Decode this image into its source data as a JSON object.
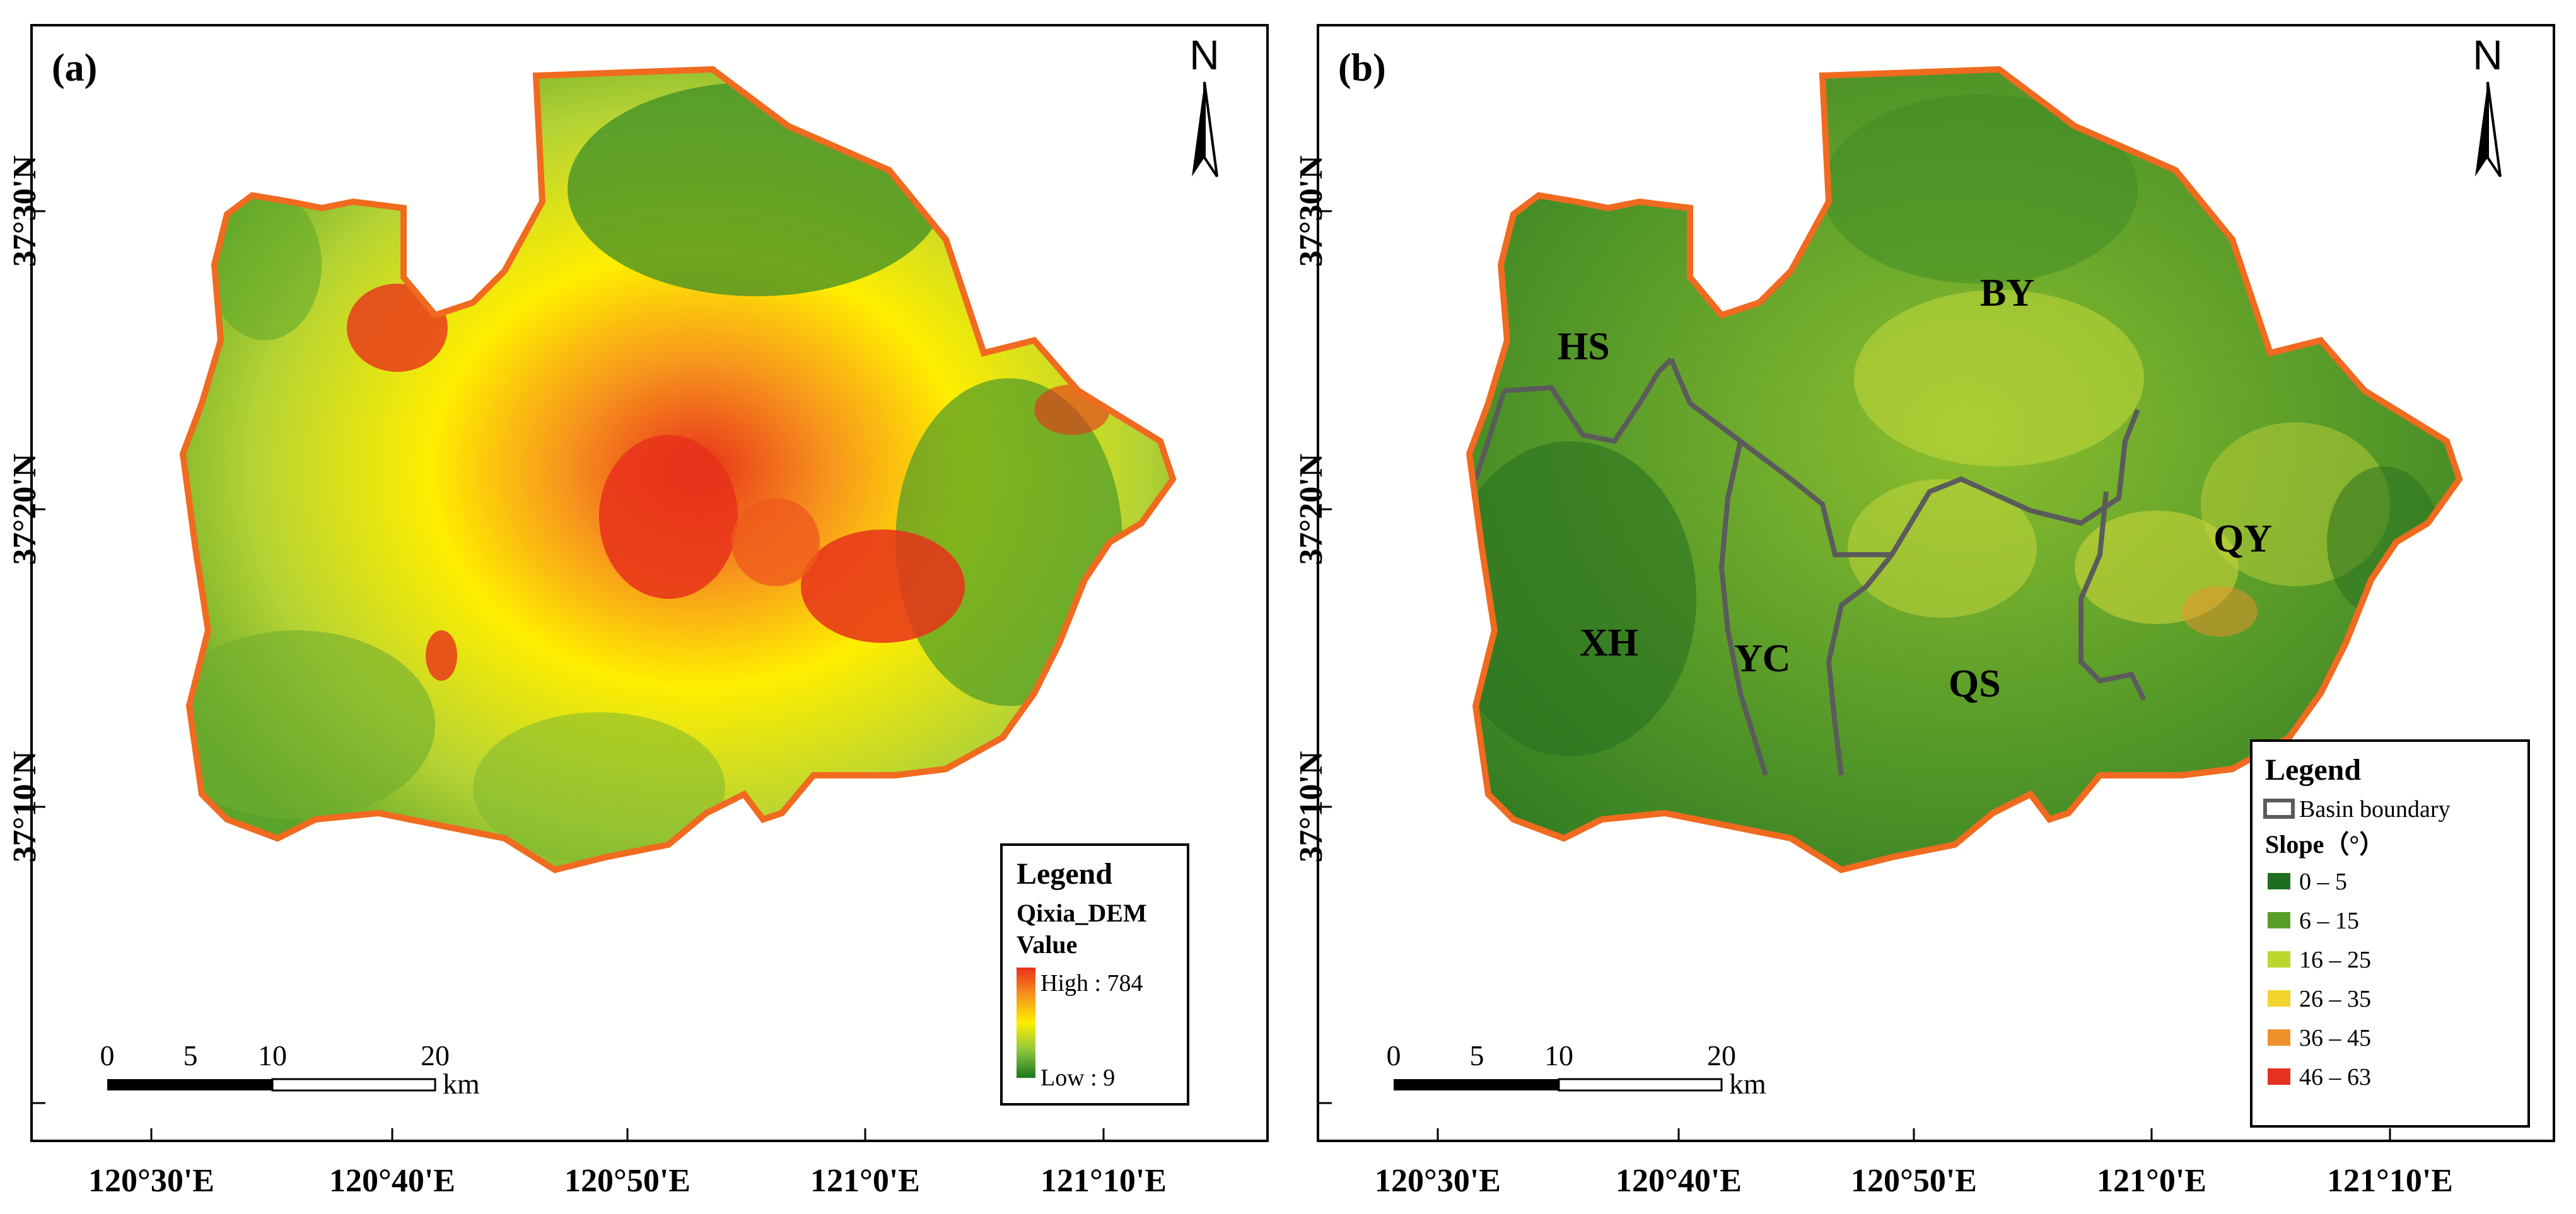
{
  "panel_a": {
    "label": "(a)",
    "north": "N",
    "y_ticks": [
      "37°30'N",
      "37°20'N",
      "37°10'N"
    ],
    "x_ticks": [
      "120°30'E",
      "120°40'E",
      "120°50'E",
      "121°0'E",
      "121°10'E"
    ],
    "scale": {
      "ticks": [
        "0",
        "5",
        "10",
        "20"
      ],
      "unit": "km"
    },
    "legend": {
      "title": "Legend",
      "layer": "Qixia_DEM",
      "field": "Value",
      "high": "High : 784",
      "low": "Low : 9",
      "ramp_colors": [
        "#e8311a",
        "#f7941d",
        "#ffee00",
        "#8cc63f",
        "#1b7a1b"
      ]
    }
  },
  "panel_b": {
    "label": "(b)",
    "north": "N",
    "y_ticks": [
      "37°30'N",
      "37°20'N",
      "37°10'N"
    ],
    "x_ticks": [
      "120°30'E",
      "120°40'E",
      "120°50'E",
      "121°0'E",
      "121°10'E"
    ],
    "scale": {
      "ticks": [
        "0",
        "5",
        "10",
        "20"
      ],
      "unit": "km"
    },
    "basins": [
      "HS",
      "BY",
      "XH",
      "YC",
      "QS",
      "QY"
    ],
    "legend": {
      "title": "Legend",
      "boundary_label": "Basin boundary",
      "slope_title": "Slope（°）",
      "classes": [
        {
          "label": "0 – 5",
          "color": "#1f6e1f"
        },
        {
          "label": "6 – 15",
          "color": "#5a9e2a"
        },
        {
          "label": "16 – 25",
          "color": "#bdd62e"
        },
        {
          "label": "26 – 35",
          "color": "#f2d22c"
        },
        {
          "label": "36 – 45",
          "color": "#f0902a"
        },
        {
          "label": "46 – 63",
          "color": "#e5311d"
        }
      ]
    }
  }
}
